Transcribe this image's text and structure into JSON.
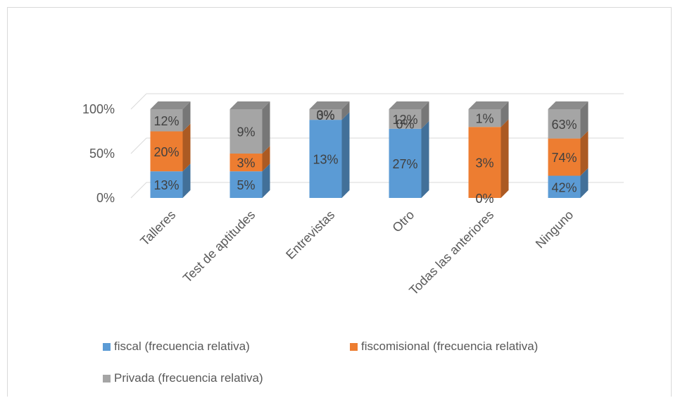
{
  "chart_data": {
    "type": "bar",
    "stacked": true,
    "three_d": true,
    "categories": [
      "Talleres",
      "Test de aptitudes",
      "Entrevistas",
      "Otro",
      "Todas las anteriores",
      "Ninguno"
    ],
    "y_ticks": [
      "0%",
      "50%",
      "100%"
    ],
    "ylim": [
      0,
      100
    ],
    "legend_position": "bottom",
    "series": [
      {
        "name": "fiscal (frecuencia relativa)",
        "color": "#5b9bd5",
        "values": [
          30,
          30,
          88,
          78,
          0,
          25
        ],
        "labels": [
          "13%",
          "5%",
          "13%",
          "27%",
          "0%",
          "42%"
        ]
      },
      {
        "name": "fiscomisional (frecuencia relativa)",
        "color": "#ed7d31",
        "values": [
          45,
          20,
          0,
          0,
          80,
          42
        ],
        "labels": [
          "20%",
          "3%",
          "0%",
          "0%",
          "3%",
          "74%"
        ]
      },
      {
        "name": "Privada (frecuencia relativa)",
        "color": "#a5a5a5",
        "values": [
          25,
          50,
          12,
          22,
          20,
          33
        ],
        "labels": [
          "12%",
          "9%",
          "3%",
          "12%",
          "1%",
          "63%"
        ]
      }
    ]
  }
}
